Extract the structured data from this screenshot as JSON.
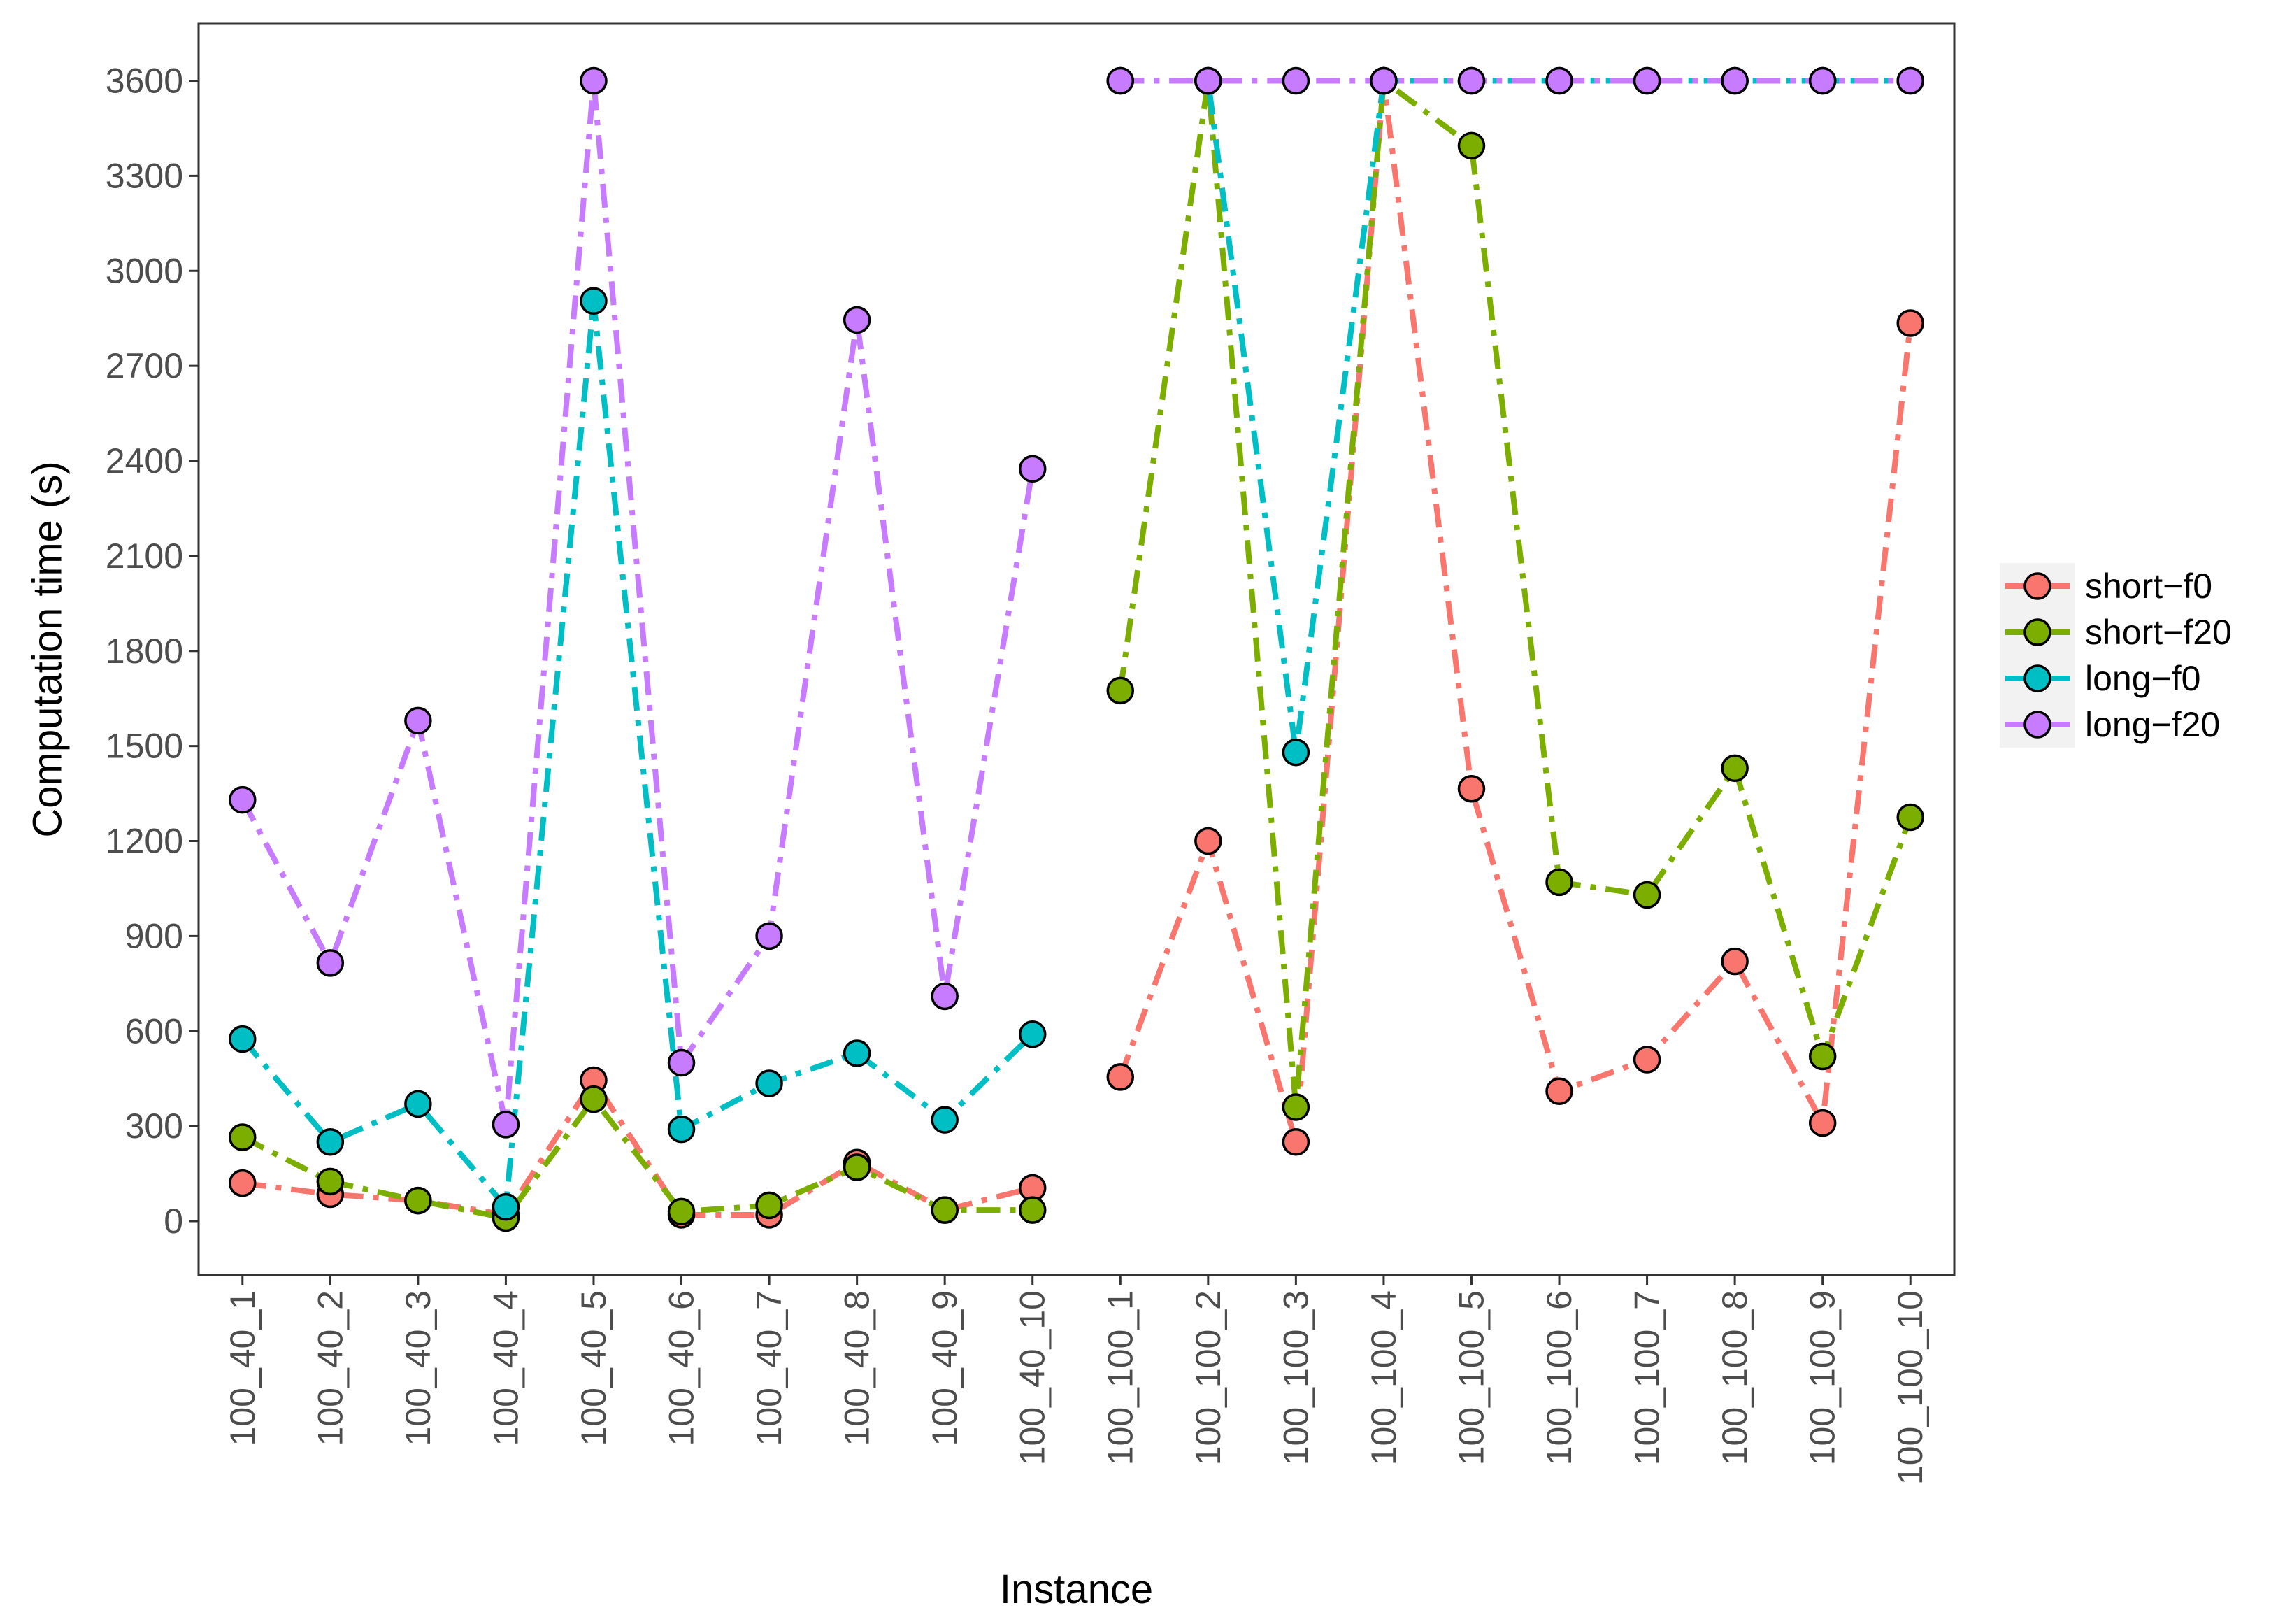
{
  "chart_data": {
    "type": "line",
    "title": "",
    "xlabel": "Instance",
    "ylabel": "Computation time (s)",
    "ylim": [
      -170,
      3780
    ],
    "yticks": [
      0,
      300,
      600,
      900,
      1200,
      1500,
      1800,
      2100,
      2400,
      2700,
      3000,
      3300,
      3600
    ],
    "grid": false,
    "legend_position": "right",
    "categories": [
      "100_40_1",
      "100_40_2",
      "100_40_3",
      "100_40_4",
      "100_40_5",
      "100_40_6",
      "100_40_7",
      "100_40_8",
      "100_40_9",
      "100_40_10",
      "100_100_1",
      "100_100_2",
      "100_100_3",
      "100_100_4",
      "100_100_5",
      "100_100_6",
      "100_100_7",
      "100_100_8",
      "100_100_9",
      "100_100_10"
    ],
    "groups": [
      [
        0,
        9
      ],
      [
        10,
        19
      ]
    ],
    "series": [
      {
        "name": "short−f0",
        "color": "#F8766D",
        "values": [
          120,
          85,
          65,
          20,
          445,
          20,
          20,
          185,
          35,
          105,
          455,
          1200,
          250,
          3600,
          1365,
          410,
          510,
          820,
          310,
          2835
        ]
      },
      {
        "name": "short−f20",
        "color": "#7CAE00",
        "values": [
          265,
          125,
          65,
          10,
          385,
          30,
          50,
          170,
          35,
          35,
          1675,
          3600,
          360,
          3600,
          3395,
          1070,
          1030,
          1430,
          520,
          1275
        ]
      },
      {
        "name": "long−f0",
        "color": "#00BFC4",
        "values": [
          575,
          250,
          370,
          45,
          2905,
          290,
          435,
          530,
          320,
          590,
          3600,
          3600,
          1480,
          3600,
          3600,
          3600,
          3600,
          3600,
          3600,
          3600
        ]
      },
      {
        "name": "long−f20",
        "color": "#C77CFF",
        "values": [
          1330,
          815,
          1580,
          305,
          3600,
          500,
          900,
          2845,
          710,
          2375,
          3600,
          3600,
          3600,
          3600,
          3600,
          3600,
          3600,
          3600,
          3600,
          3600
        ]
      }
    ]
  }
}
